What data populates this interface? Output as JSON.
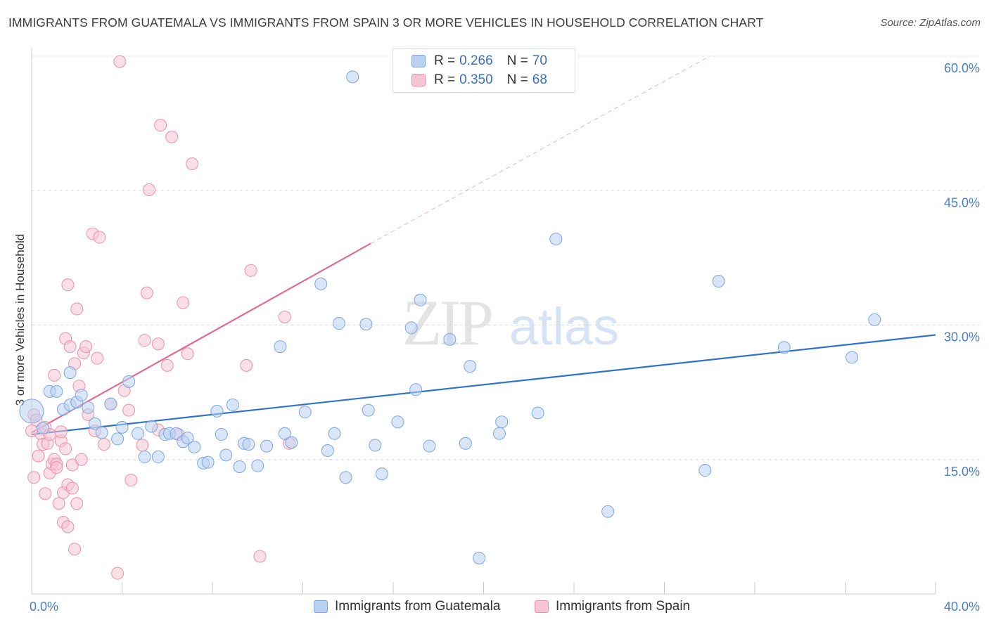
{
  "title": "IMMIGRANTS FROM GUATEMALA VS IMMIGRANTS FROM SPAIN 3 OR MORE VEHICLES IN HOUSEHOLD CORRELATION CHART",
  "source": "Source: ZipAtlas.com",
  "watermark": {
    "zip": "ZIP",
    "atlas": "atlas"
  },
  "colors": {
    "blue_fill": "#b9d1f2",
    "blue_stroke": "#7ea6e0",
    "blue_line": "#2f72cc",
    "pink_fill": "#f7c4d4",
    "pink_stroke": "#e991ae",
    "pink_line": "#e06b94",
    "grid": "#dddddd",
    "tick_text": "#4a7fc9"
  },
  "legend": {
    "rows": [
      {
        "r_label": "R =",
        "r_value": "0.266",
        "n_label": "N =",
        "n_value": "70",
        "color": "blue"
      },
      {
        "r_label": "R =",
        "r_value": "0.350",
        "n_label": "N =",
        "n_value": "68",
        "color": "pink"
      }
    ]
  },
  "chart_data": {
    "type": "scatter",
    "title": "IMMIGRANTS FROM GUATEMALA VS IMMIGRANTS FROM SPAIN 3 OR MORE VEHICLES IN HOUSEHOLD CORRELATION CHART",
    "xlabel": "",
    "ylabel": "3 or more Vehicles in Household",
    "xlim": [
      0,
      40
    ],
    "ylim": [
      0,
      60
    ],
    "x_tick_labels": [
      "0.0%",
      "40.0%"
    ],
    "y_ticks": [
      15,
      30,
      45,
      60
    ],
    "y_tick_labels": [
      "15.0%",
      "30.0%",
      "45.0%",
      "60.0%"
    ],
    "grid": true,
    "legend_position": "bottom",
    "series": [
      {
        "name": "Immigrants from Guatemala",
        "color": "blue",
        "r": 0.266,
        "n": 70,
        "trend": {
          "x": [
            0,
            40
          ],
          "y": [
            17.8,
            28.9
          ],
          "dashed_to": null
        },
        "points": [
          [
            0.0,
            20.4
          ],
          [
            0.5,
            18.5
          ],
          [
            0.8,
            22.6
          ],
          [
            1.1,
            22.6
          ],
          [
            1.4,
            20.6
          ],
          [
            1.7,
            21.1
          ],
          [
            2.0,
            21.4
          ],
          [
            2.2,
            22.2
          ],
          [
            2.5,
            20.8
          ],
          [
            2.8,
            19.0
          ],
          [
            3.1,
            18.0
          ],
          [
            3.5,
            21.2
          ],
          [
            3.8,
            17.3
          ],
          [
            4.0,
            18.6
          ],
          [
            4.3,
            23.7
          ],
          [
            4.7,
            17.9
          ],
          [
            5.0,
            15.3
          ],
          [
            5.3,
            18.7
          ],
          [
            5.6,
            15.3
          ],
          [
            5.9,
            17.8
          ],
          [
            6.1,
            17.9
          ],
          [
            6.4,
            17.9
          ],
          [
            6.7,
            17.0
          ],
          [
            6.9,
            17.4
          ],
          [
            7.2,
            16.4
          ],
          [
            7.6,
            14.6
          ],
          [
            7.8,
            14.7
          ],
          [
            8.2,
            20.4
          ],
          [
            8.4,
            17.8
          ],
          [
            8.6,
            15.5
          ],
          [
            8.9,
            21.1
          ],
          [
            9.2,
            14.2
          ],
          [
            9.4,
            16.8
          ],
          [
            9.6,
            16.7
          ],
          [
            10.0,
            14.3
          ],
          [
            10.4,
            16.5
          ],
          [
            11.0,
            27.6
          ],
          [
            11.2,
            17.9
          ],
          [
            11.5,
            16.9
          ],
          [
            12.1,
            20.3
          ],
          [
            12.8,
            34.6
          ],
          [
            13.1,
            16.0
          ],
          [
            13.4,
            17.9
          ],
          [
            13.6,
            30.2
          ],
          [
            13.9,
            13.0
          ],
          [
            14.2,
            57.7
          ],
          [
            14.8,
            30.1
          ],
          [
            14.9,
            20.5
          ],
          [
            15.2,
            16.6
          ],
          [
            15.5,
            13.4
          ],
          [
            16.2,
            19.2
          ],
          [
            16.8,
            29.7
          ],
          [
            17.0,
            22.8
          ],
          [
            17.2,
            32.8
          ],
          [
            17.6,
            16.5
          ],
          [
            18.5,
            28.4
          ],
          [
            19.2,
            16.8
          ],
          [
            19.4,
            25.4
          ],
          [
            19.8,
            4.0
          ],
          [
            20.7,
            17.9
          ],
          [
            20.8,
            19.2
          ],
          [
            22.4,
            20.2
          ],
          [
            23.2,
            39.6
          ],
          [
            25.5,
            9.2
          ],
          [
            29.8,
            13.8
          ],
          [
            30.4,
            34.9
          ],
          [
            33.3,
            27.5
          ],
          [
            36.3,
            26.4
          ],
          [
            37.3,
            30.6
          ],
          [
            1.7,
            24.7
          ]
        ]
      },
      {
        "name": "Immigrants from Spain",
        "color": "pink",
        "r": 0.35,
        "n": 68,
        "trend": {
          "x": [
            0,
            15
          ],
          "y": [
            18.0,
            39.1
          ],
          "dashed_to": [
            30,
            60
          ]
        },
        "points": [
          [
            0.1,
            20.0
          ],
          [
            0.1,
            13.0
          ],
          [
            0.3,
            15.4
          ],
          [
            0.4,
            17.9
          ],
          [
            0.5,
            16.7
          ],
          [
            0.6,
            11.2
          ],
          [
            0.6,
            18.6
          ],
          [
            0.7,
            16.8
          ],
          [
            0.8,
            13.5
          ],
          [
            0.8,
            17.8
          ],
          [
            0.9,
            14.5
          ],
          [
            1.0,
            15.0
          ],
          [
            1.0,
            24.4
          ],
          [
            1.1,
            14.5
          ],
          [
            1.1,
            14.1
          ],
          [
            1.2,
            10.1
          ],
          [
            1.3,
            17.1
          ],
          [
            1.3,
            18.1
          ],
          [
            1.4,
            11.3
          ],
          [
            1.4,
            8.0
          ],
          [
            1.5,
            28.5
          ],
          [
            1.6,
            7.5
          ],
          [
            1.6,
            12.2
          ],
          [
            1.6,
            34.5
          ],
          [
            1.7,
            27.6
          ],
          [
            1.8,
            14.4
          ],
          [
            1.8,
            11.8
          ],
          [
            1.9,
            5.0
          ],
          [
            1.9,
            25.7
          ],
          [
            2.0,
            10.1
          ],
          [
            2.0,
            31.8
          ],
          [
            2.1,
            23.2
          ],
          [
            2.2,
            15.0
          ],
          [
            2.3,
            26.9
          ],
          [
            2.4,
            27.6
          ],
          [
            2.5,
            20.0
          ],
          [
            2.7,
            40.2
          ],
          [
            2.8,
            18.2
          ],
          [
            2.9,
            26.3
          ],
          [
            3.0,
            39.8
          ],
          [
            3.2,
            16.7
          ],
          [
            3.5,
            21.2
          ],
          [
            3.8,
            2.3
          ],
          [
            3.9,
            59.4
          ],
          [
            4.1,
            22.7
          ],
          [
            4.3,
            20.5
          ],
          [
            4.4,
            12.7
          ],
          [
            4.9,
            16.6
          ],
          [
            5.0,
            28.3
          ],
          [
            5.1,
            33.6
          ],
          [
            5.2,
            45.1
          ],
          [
            5.6,
            18.3
          ],
          [
            5.6,
            27.9
          ],
          [
            5.7,
            52.3
          ],
          [
            6.0,
            25.5
          ],
          [
            6.2,
            51.0
          ],
          [
            6.5,
            17.8
          ],
          [
            6.7,
            32.5
          ],
          [
            6.9,
            26.8
          ],
          [
            7.1,
            48.0
          ],
          [
            9.5,
            25.5
          ],
          [
            9.7,
            36.1
          ],
          [
            10.1,
            4.2
          ],
          [
            11.2,
            30.9
          ],
          [
            11.4,
            16.8
          ],
          [
            0.0,
            18.2
          ],
          [
            0.2,
            19.4
          ],
          [
            1.5,
            16.2
          ]
        ]
      }
    ]
  }
}
